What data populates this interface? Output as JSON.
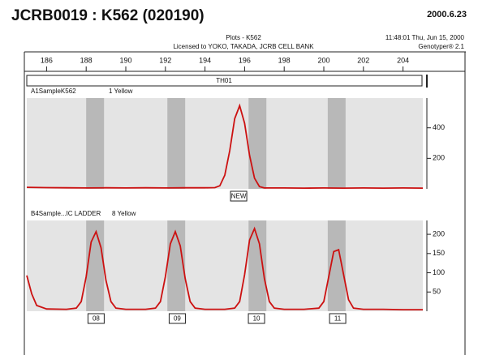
{
  "header": {
    "title": "JCRB0019 : K562 (020190)",
    "date": "2000.6.23",
    "plot_name": "Plots - K562",
    "license": "Licensed to YOKO, TAKADA, JCRB CELL BANK",
    "timestamp": "11:48:01 Thu, Jun 15, 2000",
    "software": "Genotyper® 2.1"
  },
  "marker": "TH01",
  "chart_data": [
    {
      "type": "line",
      "title": "A1SampleK562",
      "dye": "1 Yellow",
      "color": "#cc1111",
      "xlim": [
        185,
        205
      ],
      "xticks": [
        186,
        188,
        190,
        192,
        194,
        196,
        198,
        200,
        202,
        204
      ],
      "ylim": [
        0,
        595
      ],
      "yticks": [
        200,
        400
      ],
      "shaded_bins": [
        [
          188,
          188.9
        ],
        [
          192.1,
          193
        ],
        [
          196.2,
          197.1
        ],
        [
          200.2,
          201.1
        ]
      ],
      "peak_labels": [
        {
          "x": 195.7,
          "label": "NEW"
        }
      ],
      "x": [
        185,
        186,
        187,
        188,
        189,
        190,
        191,
        192,
        193,
        194,
        194.5,
        194.75,
        195,
        195.25,
        195.5,
        195.75,
        196,
        196.25,
        196.5,
        196.75,
        197,
        198,
        199,
        200,
        201,
        202,
        203,
        204,
        205
      ],
      "values": [
        10,
        8,
        7,
        6,
        7,
        6,
        7,
        6,
        7,
        7,
        8,
        20,
        90,
        250,
        460,
        545,
        430,
        220,
        70,
        15,
        6,
        6,
        5,
        6,
        5,
        6,
        5,
        6,
        5
      ]
    },
    {
      "type": "line",
      "title": "B4Sample...IC LADDER",
      "dye": "8 Yellow",
      "color": "#cc1111",
      "xlim": [
        185,
        205
      ],
      "xticks": [
        186,
        188,
        190,
        192,
        194,
        196,
        198,
        200,
        202,
        204
      ],
      "ylim": [
        0,
        236
      ],
      "yticks": [
        50,
        100,
        150,
        200
      ],
      "shaded_bins": [
        [
          188,
          188.9
        ],
        [
          192.1,
          193
        ],
        [
          196.2,
          197.1
        ],
        [
          200.2,
          201.1
        ]
      ],
      "peak_labels": [
        {
          "x": 188.5,
          "label": "08"
        },
        {
          "x": 192.6,
          "label": "09"
        },
        {
          "x": 196.6,
          "label": "10"
        },
        {
          "x": 200.7,
          "label": "11"
        }
      ],
      "x": [
        185,
        185.25,
        185.5,
        186,
        187,
        187.5,
        187.75,
        188,
        188.25,
        188.5,
        188.75,
        189,
        189.25,
        189.5,
        190,
        191,
        191.5,
        191.75,
        192,
        192.25,
        192.5,
        192.75,
        193,
        193.25,
        193.5,
        194,
        195,
        195.5,
        195.75,
        196,
        196.25,
        196.5,
        196.75,
        197,
        197.25,
        197.5,
        198,
        199,
        199.75,
        200,
        200.25,
        200.5,
        200.75,
        201,
        201.25,
        201.5,
        202,
        203,
        204,
        205
      ],
      "values": [
        93,
        45,
        15,
        6,
        5,
        8,
        25,
        90,
        180,
        207,
        165,
        80,
        25,
        8,
        5,
        5,
        8,
        25,
        90,
        175,
        207,
        170,
        85,
        25,
        8,
        5,
        5,
        8,
        25,
        95,
        185,
        215,
        175,
        85,
        25,
        8,
        5,
        5,
        8,
        25,
        90,
        155,
        160,
        95,
        30,
        8,
        5,
        5,
        4,
        4
      ]
    }
  ]
}
